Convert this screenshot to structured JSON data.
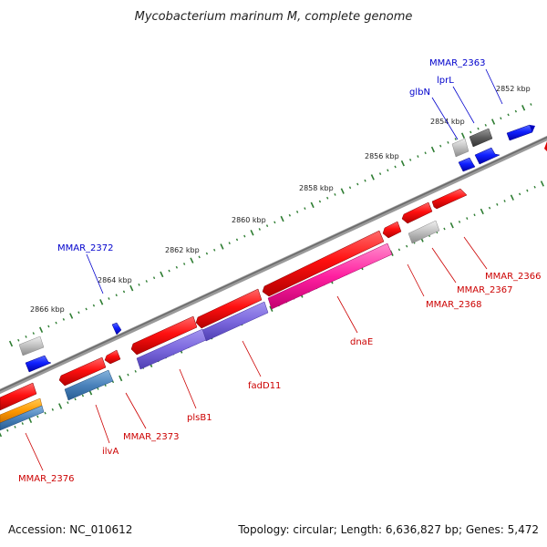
{
  "title": "Mycobacterium marinum M, complete genome",
  "footer": {
    "accession": "Accession: NC_010612",
    "topology": "Topology: circular; Length: 6,636,827 bp; Genes: 5,472"
  },
  "colors": {
    "backbone": "#808080",
    "ticks": "#2e7d32",
    "label_blue": "#0000cc",
    "label_red": "#cc0000"
  },
  "scale_labels": [
    {
      "kbp": 2852,
      "text": "2852 kbp"
    },
    {
      "kbp": 2854,
      "text": "2854 kbp"
    },
    {
      "kbp": 2856,
      "text": "2856 kbp"
    },
    {
      "kbp": 2858,
      "text": "2858 kbp"
    },
    {
      "kbp": 2860,
      "text": "2860 kbp"
    },
    {
      "kbp": 2862,
      "text": "2862 kbp"
    },
    {
      "kbp": 2864,
      "text": "2864 kbp"
    },
    {
      "kbp": 2866,
      "text": "2866 kbp"
    }
  ],
  "genes": [
    {
      "label": "MMAR_2363",
      "strand": "forward"
    },
    {
      "label": "lprL",
      "strand": "forward"
    },
    {
      "label": "glbN",
      "strand": "forward"
    },
    {
      "label": "MMAR_2366",
      "strand": "reverse"
    },
    {
      "label": "MMAR_2367",
      "strand": "reverse"
    },
    {
      "label": "MMAR_2368",
      "strand": "reverse"
    },
    {
      "label": "dnaE",
      "strand": "reverse"
    },
    {
      "label": "fadD11",
      "strand": "reverse"
    },
    {
      "label": "plsB1",
      "strand": "reverse"
    },
    {
      "label": "MMAR_2372",
      "strand": "forward"
    },
    {
      "label": "MMAR_2373",
      "strand": "reverse"
    },
    {
      "label": "ilvA",
      "strand": "reverse"
    },
    {
      "label": "MMAR_2376",
      "strand": "reverse"
    }
  ]
}
